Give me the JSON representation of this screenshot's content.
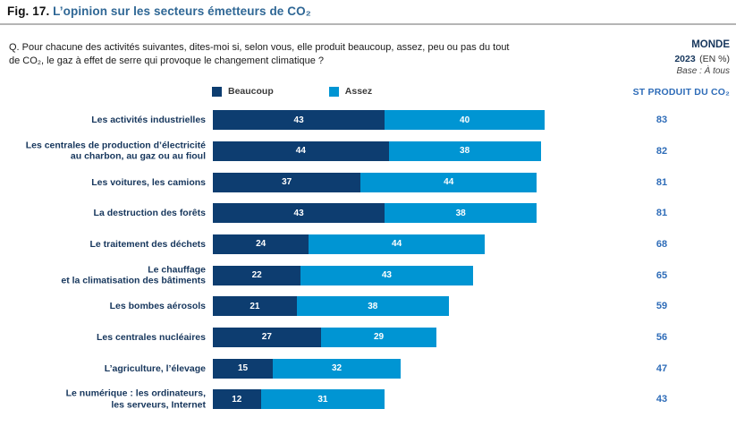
{
  "figure": {
    "fig_label": "Fig. 17.",
    "title": "L’opinion sur les secteurs émetteurs de CO₂"
  },
  "question": "Q. Pour chacune des activités suivantes, dites-moi si, selon vous, elle produit beaucoup, assez, peu ou pas du tout\nde CO₂, le gaz à effet de serre qui provoque le changement climatique ?",
  "meta": {
    "region": "MONDE",
    "year": "2023",
    "unit": "(EN %)",
    "base": "Base : À tous"
  },
  "st_header": "ST PRODUIT DU CO₂",
  "colors": {
    "beaucoup": "#0d3d70",
    "assez": "#0095d3",
    "total_text": "#2e6cb8",
    "title_blue": "#2f6795",
    "label_navy": "#16365c"
  },
  "chart_data": {
    "type": "bar",
    "orientation": "horizontal",
    "stacked": true,
    "unit": "%",
    "xlim": [
      0,
      100
    ],
    "title": "L’opinion sur les secteurs émetteurs de CO₂",
    "legend_position": "top",
    "categories": [
      "Les activités industrielles",
      "Les centrales de production d’électricité\nau charbon, au gaz ou au fioul",
      "Les voitures, les camions",
      "La destruction des forêts",
      "Le traitement des déchets",
      "Le chauffage\net la climatisation des bâtiments",
      "Les bombes aérosols",
      "Les centrales nucléaires",
      "L’agriculture, l’élevage",
      "Le numérique : les ordinateurs,\nles serveurs, Internet"
    ],
    "series": [
      {
        "name": "Beaucoup",
        "color": "#0d3d70",
        "values": [
          43,
          44,
          37,
          43,
          24,
          22,
          21,
          27,
          15,
          12
        ]
      },
      {
        "name": "Assez",
        "color": "#0095d3",
        "values": [
          40,
          38,
          44,
          38,
          44,
          43,
          38,
          29,
          32,
          31
        ]
      }
    ],
    "totals": [
      83,
      82,
      81,
      81,
      68,
      65,
      59,
      56,
      47,
      43
    ],
    "totals_label": "ST PRODUIT DU CO₂"
  }
}
